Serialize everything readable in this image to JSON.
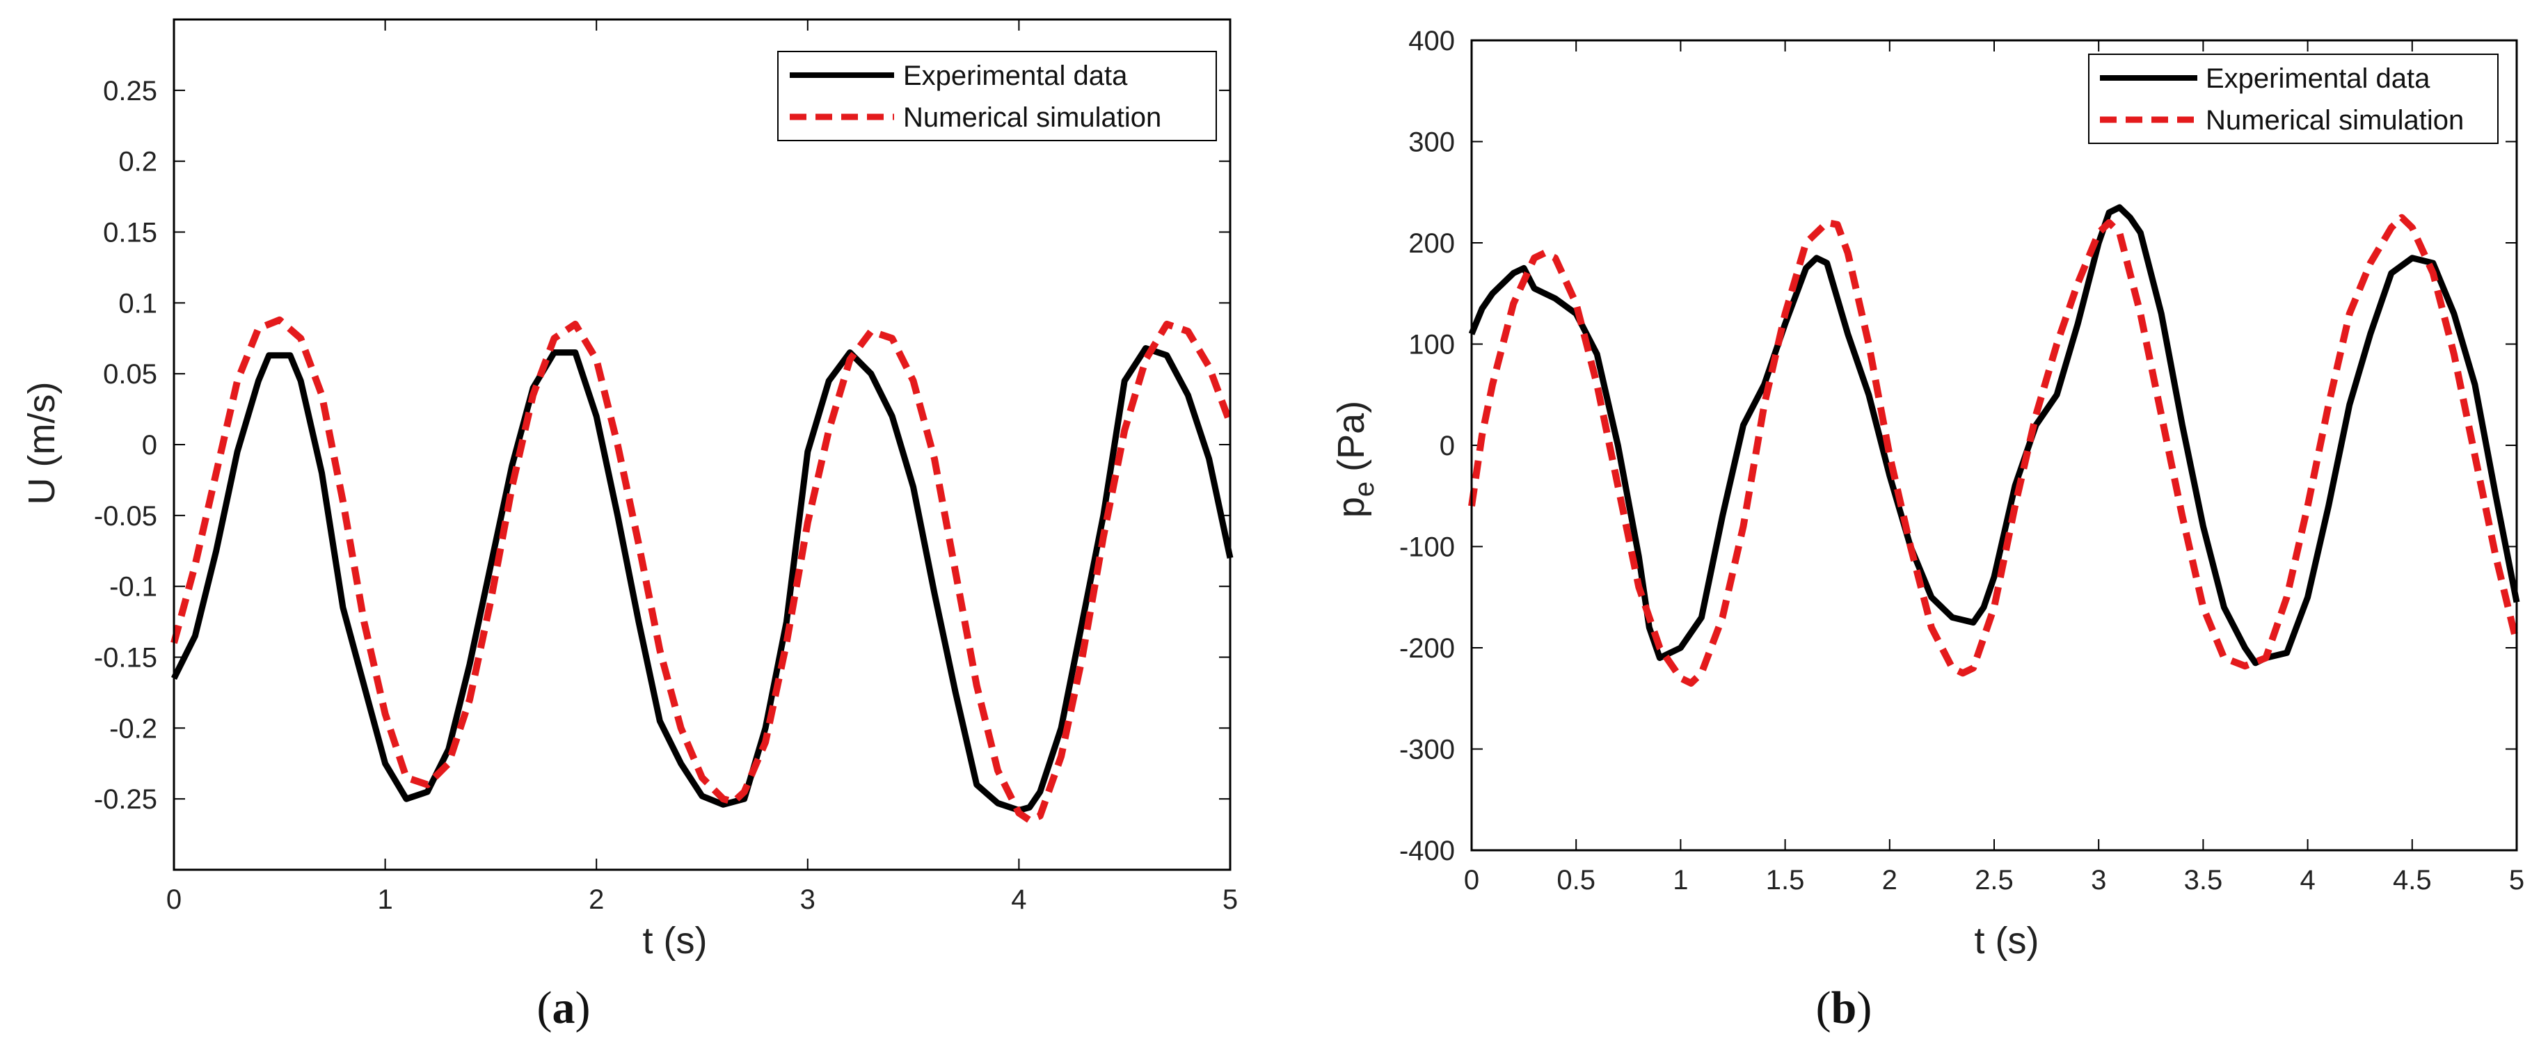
{
  "chart_data": [
    {
      "type": "line",
      "panel": "a",
      "title": "",
      "xlabel": "t (s)",
      "ylabel": "U (m/s)",
      "xlim": [
        0,
        5
      ],
      "ylim": [
        -0.3,
        0.3
      ],
      "xticks": [
        0,
        1,
        2,
        3,
        4,
        5
      ],
      "xtick_labels": [
        "0",
        "1",
        "2",
        "3",
        "4",
        "5"
      ],
      "yticks": [
        -0.25,
        -0.2,
        -0.15,
        -0.1,
        -0.05,
        0,
        0.05,
        0.1,
        0.15,
        0.2,
        0.25
      ],
      "ytick_labels": [
        "-0.25",
        "-0.2",
        "-0.15",
        "-0.1",
        "-0.05",
        "0",
        "0.05",
        "0.1",
        "0.15",
        "0.2",
        "0.25"
      ],
      "grid": false,
      "legend_position": "top-right",
      "series": [
        {
          "name": "Experimental data",
          "color": "#000000",
          "style": "solid",
          "x": [
            0,
            0.1,
            0.2,
            0.3,
            0.4,
            0.45,
            0.55,
            0.6,
            0.7,
            0.8,
            0.9,
            1.0,
            1.1,
            1.2,
            1.3,
            1.4,
            1.5,
            1.6,
            1.7,
            1.8,
            1.9,
            2.0,
            2.1,
            2.2,
            2.3,
            2.4,
            2.5,
            2.6,
            2.7,
            2.8,
            2.9,
            3.0,
            3.1,
            3.2,
            3.3,
            3.4,
            3.5,
            3.6,
            3.7,
            3.8,
            3.9,
            4.0,
            4.05,
            4.1,
            4.2,
            4.3,
            4.4,
            4.5,
            4.6,
            4.7,
            4.8,
            4.9,
            5.0
          ],
          "y": [
            -0.165,
            -0.135,
            -0.075,
            -0.005,
            0.045,
            0.063,
            0.063,
            0.045,
            -0.02,
            -0.115,
            -0.17,
            -0.225,
            -0.25,
            -0.245,
            -0.215,
            -0.155,
            -0.085,
            -0.015,
            0.04,
            0.065,
            0.065,
            0.02,
            -0.05,
            -0.125,
            -0.195,
            -0.225,
            -0.248,
            -0.254,
            -0.25,
            -0.2,
            -0.125,
            -0.005,
            0.045,
            0.065,
            0.05,
            0.02,
            -0.03,
            -0.105,
            -0.175,
            -0.24,
            -0.253,
            -0.258,
            -0.256,
            -0.245,
            -0.2,
            -0.125,
            -0.05,
            0.045,
            0.068,
            0.063,
            0.035,
            -0.01,
            -0.08
          ]
        },
        {
          "name": "Numerical simulation",
          "color": "#e41a1c",
          "style": "dashed",
          "x": [
            0,
            0.1,
            0.2,
            0.3,
            0.4,
            0.5,
            0.6,
            0.7,
            0.8,
            0.9,
            1.0,
            1.1,
            1.2,
            1.3,
            1.4,
            1.5,
            1.6,
            1.7,
            1.8,
            1.9,
            2.0,
            2.1,
            2.2,
            2.3,
            2.4,
            2.5,
            2.6,
            2.65,
            2.7,
            2.8,
            2.9,
            3.0,
            3.1,
            3.2,
            3.3,
            3.4,
            3.5,
            3.6,
            3.7,
            3.8,
            3.9,
            4.0,
            4.05,
            4.1,
            4.2,
            4.3,
            4.4,
            4.5,
            4.6,
            4.7,
            4.8,
            4.9,
            5.0
          ],
          "y": [
            -0.14,
            -0.085,
            -0.02,
            0.045,
            0.082,
            0.088,
            0.075,
            0.035,
            -0.04,
            -0.125,
            -0.19,
            -0.235,
            -0.24,
            -0.225,
            -0.18,
            -0.11,
            -0.03,
            0.035,
            0.075,
            0.085,
            0.06,
            0.0,
            -0.07,
            -0.145,
            -0.2,
            -0.235,
            -0.25,
            -0.252,
            -0.245,
            -0.21,
            -0.14,
            -0.055,
            0.01,
            0.06,
            0.08,
            0.075,
            0.045,
            -0.01,
            -0.09,
            -0.17,
            -0.23,
            -0.26,
            -0.265,
            -0.262,
            -0.22,
            -0.15,
            -0.065,
            0.01,
            0.06,
            0.085,
            0.08,
            0.055,
            0.015
          ]
        }
      ]
    },
    {
      "type": "line",
      "panel": "b",
      "title": "",
      "xlabel": "t (s)",
      "ylabel_main": "p",
      "ylabel_sub": "e",
      "ylabel_unit": "(Pa)",
      "xlim": [
        0,
        5
      ],
      "ylim": [
        -400,
        400
      ],
      "xticks": [
        0,
        0.5,
        1,
        1.5,
        2,
        2.5,
        3,
        3.5,
        4,
        4.5,
        5
      ],
      "xtick_labels": [
        "0",
        "0.5",
        "1",
        "1.5",
        "2",
        "2.5",
        "3",
        "3.5",
        "4",
        "4.5",
        "5"
      ],
      "yticks": [
        -400,
        -300,
        -200,
        -100,
        0,
        100,
        200,
        300,
        400
      ],
      "ytick_labels": [
        "-400",
        "-300",
        "-200",
        "-100",
        "0",
        "100",
        "200",
        "300",
        "400"
      ],
      "grid": false,
      "legend_position": "top-right",
      "series": [
        {
          "name": "Experimental data",
          "color": "#000000",
          "style": "solid",
          "x": [
            0,
            0.05,
            0.1,
            0.2,
            0.25,
            0.3,
            0.4,
            0.5,
            0.6,
            0.7,
            0.8,
            0.85,
            0.9,
            1.0,
            1.1,
            1.2,
            1.3,
            1.4,
            1.5,
            1.6,
            1.65,
            1.7,
            1.8,
            1.9,
            2.0,
            2.1,
            2.2,
            2.3,
            2.4,
            2.45,
            2.5,
            2.6,
            2.7,
            2.8,
            2.9,
            3.0,
            3.05,
            3.1,
            3.15,
            3.2,
            3.3,
            3.4,
            3.5,
            3.6,
            3.7,
            3.75,
            3.8,
            3.9,
            4.0,
            4.1,
            4.2,
            4.3,
            4.4,
            4.5,
            4.6,
            4.7,
            4.8,
            4.9,
            5.0
          ],
          "y": [
            110,
            135,
            150,
            170,
            175,
            155,
            145,
            130,
            90,
            0,
            -110,
            -180,
            -210,
            -200,
            -170,
            -70,
            20,
            60,
            120,
            175,
            185,
            180,
            110,
            50,
            -30,
            -100,
            -150,
            -170,
            -175,
            -160,
            -130,
            -40,
            20,
            50,
            120,
            200,
            230,
            235,
            225,
            210,
            130,
            20,
            -80,
            -160,
            -200,
            -215,
            -210,
            -205,
            -150,
            -60,
            40,
            110,
            170,
            185,
            180,
            130,
            60,
            -50,
            -155
          ]
        },
        {
          "name": "Numerical simulation",
          "color": "#e41a1c",
          "style": "dashed",
          "x": [
            0,
            0.05,
            0.1,
            0.2,
            0.3,
            0.35,
            0.4,
            0.5,
            0.6,
            0.7,
            0.8,
            0.9,
            1.0,
            1.05,
            1.1,
            1.2,
            1.3,
            1.4,
            1.5,
            1.6,
            1.7,
            1.75,
            1.8,
            1.9,
            2.0,
            2.1,
            2.2,
            2.3,
            2.35,
            2.4,
            2.5,
            2.6,
            2.7,
            2.8,
            2.9,
            3.0,
            3.05,
            3.1,
            3.2,
            3.3,
            3.4,
            3.5,
            3.6,
            3.7,
            3.8,
            3.9,
            4.0,
            4.1,
            4.2,
            4.3,
            4.4,
            4.45,
            4.5,
            4.6,
            4.7,
            4.8,
            4.9,
            5.0
          ],
          "y": [
            -60,
            10,
            60,
            140,
            185,
            190,
            185,
            140,
            60,
            -40,
            -140,
            -200,
            -230,
            -235,
            -225,
            -170,
            -80,
            40,
            130,
            200,
            220,
            218,
            190,
            100,
            -10,
            -100,
            -180,
            -220,
            -225,
            -220,
            -160,
            -60,
            30,
            100,
            160,
            210,
            220,
            210,
            130,
            30,
            -70,
            -160,
            -210,
            -218,
            -210,
            -150,
            -60,
            40,
            130,
            180,
            215,
            225,
            215,
            170,
            90,
            -10,
            -110,
            -195
          ]
        }
      ]
    }
  ],
  "panel_labels": {
    "a": {
      "open": "(",
      "letter": "a",
      "close": ")"
    },
    "b": {
      "open": "(",
      "letter": "b",
      "close": ")"
    }
  }
}
